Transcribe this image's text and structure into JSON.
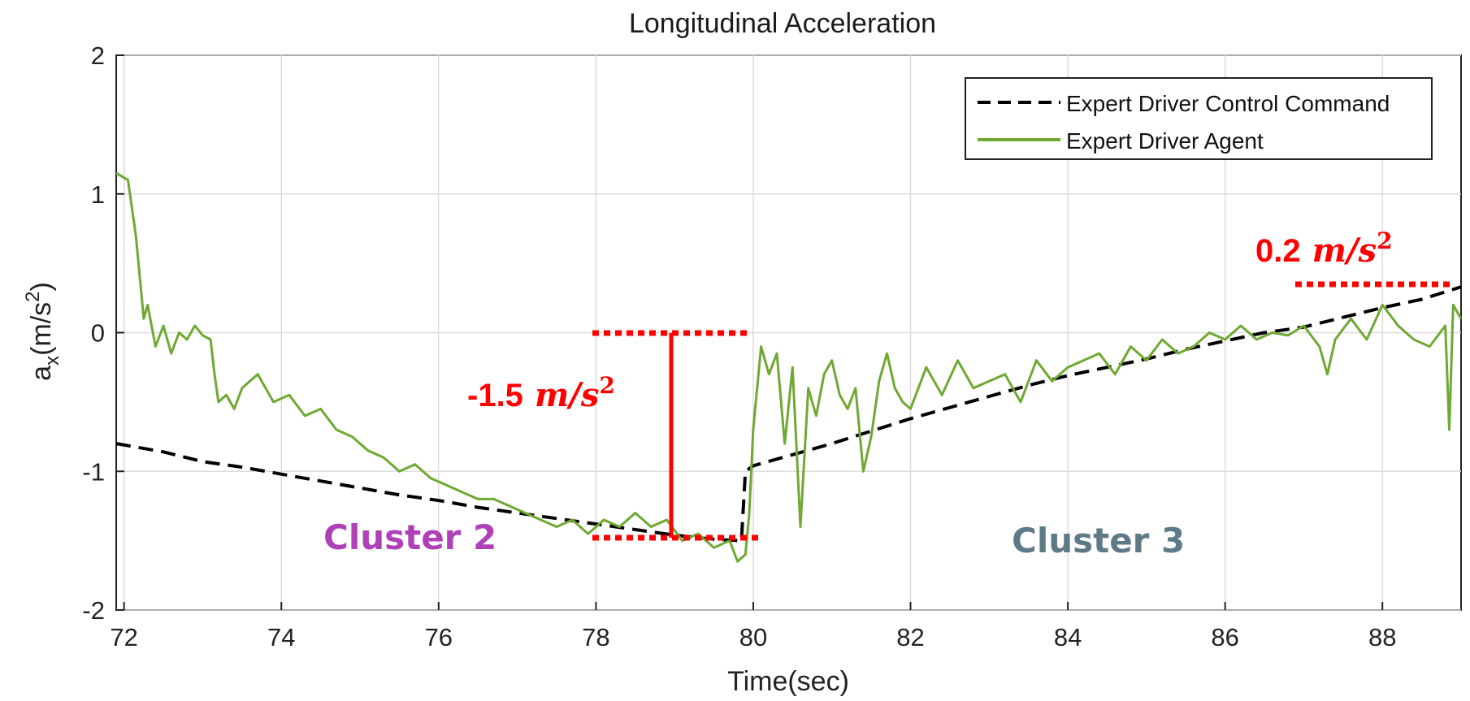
{
  "chart_data": {
    "type": "line",
    "title": "Longitudinal Acceleration",
    "xlabel": "Time(sec)",
    "ylabel": "a_x(m/s^2)",
    "ylabel_parts": {
      "main": "a",
      "sub": "x",
      "unit": "(m/s",
      "sup": "2",
      "close": ")"
    },
    "xlim": [
      71.9,
      89.0
    ],
    "ylim": [
      -2,
      2
    ],
    "xticks": [
      72,
      74,
      76,
      78,
      80,
      82,
      84,
      86,
      88
    ],
    "yticks": [
      2,
      1,
      0,
      -1,
      -2
    ],
    "grid": true,
    "legend_position": "top-right",
    "series": [
      {
        "name": "Expert Driver Control Command",
        "style": "dashed",
        "color": "#000000",
        "x": [
          71.9,
          72.5,
          73.0,
          73.5,
          74.0,
          74.5,
          75.0,
          75.5,
          76.0,
          76.5,
          77.0,
          77.5,
          78.0,
          78.5,
          79.0,
          79.5,
          79.85,
          79.9,
          80.0,
          80.5,
          81.0,
          81.5,
          82.0,
          82.5,
          83.0,
          83.5,
          84.0,
          84.5,
          85.0,
          85.5,
          86.0,
          86.5,
          87.0,
          87.5,
          88.0,
          88.5,
          89.0
        ],
        "y": [
          -0.8,
          -0.86,
          -0.93,
          -0.97,
          -1.02,
          -1.07,
          -1.12,
          -1.17,
          -1.21,
          -1.26,
          -1.3,
          -1.34,
          -1.38,
          -1.42,
          -1.46,
          -1.49,
          -1.5,
          -1.0,
          -0.96,
          -0.88,
          -0.8,
          -0.71,
          -0.62,
          -0.54,
          -0.46,
          -0.38,
          -0.31,
          -0.25,
          -0.19,
          -0.12,
          -0.06,
          0.0,
          0.04,
          0.11,
          0.18,
          0.24,
          0.33
        ]
      },
      {
        "name": "Expert Driver Agent",
        "style": "solid",
        "color": "#6fa832",
        "x": [
          71.9,
          72.05,
          72.15,
          72.25,
          72.3,
          72.4,
          72.5,
          72.6,
          72.7,
          72.8,
          72.9,
          73.0,
          73.1,
          73.15,
          73.2,
          73.3,
          73.4,
          73.5,
          73.7,
          73.9,
          74.1,
          74.3,
          74.5,
          74.7,
          74.9,
          75.1,
          75.3,
          75.5,
          75.7,
          75.9,
          76.1,
          76.3,
          76.5,
          76.7,
          76.9,
          77.1,
          77.3,
          77.5,
          77.7,
          77.9,
          78.1,
          78.3,
          78.5,
          78.7,
          78.9,
          79.1,
          79.3,
          79.5,
          79.7,
          79.8,
          79.9,
          79.95,
          80.0,
          80.1,
          80.2,
          80.3,
          80.4,
          80.5,
          80.6,
          80.7,
          80.8,
          80.9,
          81.0,
          81.1,
          81.2,
          81.3,
          81.4,
          81.5,
          81.6,
          81.7,
          81.8,
          81.9,
          82.0,
          82.2,
          82.4,
          82.6,
          82.8,
          83.0,
          83.2,
          83.4,
          83.6,
          83.8,
          84.0,
          84.2,
          84.4,
          84.6,
          84.8,
          85.0,
          85.2,
          85.4,
          85.6,
          85.8,
          86.0,
          86.2,
          86.4,
          86.6,
          86.8,
          87.0,
          87.2,
          87.3,
          87.4,
          87.6,
          87.8,
          88.0,
          88.2,
          88.4,
          88.6,
          88.8,
          88.85,
          88.9,
          89.0
        ],
        "y": [
          1.15,
          1.1,
          0.7,
          0.1,
          0.2,
          -0.1,
          0.05,
          -0.15,
          0.0,
          -0.05,
          0.05,
          -0.02,
          -0.05,
          -0.3,
          -0.5,
          -0.45,
          -0.55,
          -0.4,
          -0.3,
          -0.5,
          -0.45,
          -0.6,
          -0.55,
          -0.7,
          -0.75,
          -0.85,
          -0.9,
          -1.0,
          -0.95,
          -1.05,
          -1.1,
          -1.15,
          -1.2,
          -1.2,
          -1.25,
          -1.3,
          -1.35,
          -1.4,
          -1.35,
          -1.45,
          -1.35,
          -1.4,
          -1.3,
          -1.4,
          -1.35,
          -1.5,
          -1.45,
          -1.55,
          -1.5,
          -1.65,
          -1.6,
          -1.3,
          -0.7,
          -0.1,
          -0.3,
          -0.15,
          -0.8,
          -0.25,
          -1.4,
          -0.4,
          -0.6,
          -0.3,
          -0.2,
          -0.45,
          -0.55,
          -0.4,
          -1.0,
          -0.75,
          -0.35,
          -0.15,
          -0.4,
          -0.5,
          -0.55,
          -0.25,
          -0.45,
          -0.2,
          -0.4,
          -0.35,
          -0.3,
          -0.5,
          -0.2,
          -0.35,
          -0.25,
          -0.2,
          -0.15,
          -0.3,
          -0.1,
          -0.2,
          -0.05,
          -0.15,
          -0.1,
          0.0,
          -0.05,
          0.05,
          -0.05,
          0.0,
          -0.02,
          0.05,
          -0.1,
          -0.3,
          -0.05,
          0.1,
          -0.05,
          0.2,
          0.05,
          -0.05,
          -0.1,
          0.05,
          -0.7,
          0.2,
          0.1
        ]
      }
    ],
    "annotations": {
      "drop_value": "-1.5",
      "rise_value": "0.2",
      "unit_m": "m",
      "unit_slash": "/",
      "unit_s": "s",
      "unit_sup": "2",
      "cluster_left": "Cluster 2",
      "cluster_right": "Cluster 3",
      "cluster_left_color": "#b040b8",
      "cluster_right_color": "#5e7a86",
      "marker_color": "#ff0000"
    }
  }
}
